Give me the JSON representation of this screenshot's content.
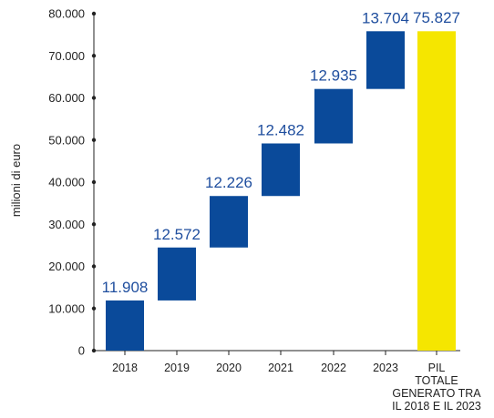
{
  "chart_data": {
    "type": "bar",
    "subtype": "waterfall",
    "ylabel": "milioni di euro",
    "ylim": [
      0,
      80000
    ],
    "yticks": [
      "0",
      "10.000",
      "20.000",
      "30.000",
      "40.000",
      "50.000",
      "60.000",
      "70.000",
      "80.000"
    ],
    "ytick_values": [
      0,
      10000,
      20000,
      30000,
      40000,
      50000,
      60000,
      70000,
      80000
    ],
    "categories": [
      "2018",
      "2019",
      "2020",
      "2021",
      "2022",
      "2023"
    ],
    "total_category_lines": [
      "PIL",
      "TOTALE",
      "GENERATO TRA",
      "IL 2018 E IL 2023"
    ],
    "values": [
      11908,
      12572,
      12226,
      12482,
      12935,
      13704
    ],
    "value_labels": [
      "11.908",
      "12.572",
      "12.226",
      "12.482",
      "12.935",
      "13.704"
    ],
    "total": 75827,
    "total_label": "75.827",
    "grid": false,
    "colors": {
      "increment": "#0a4a9a",
      "total": "#f5e600",
      "label": "#1f4e9e",
      "axis": "#222222"
    }
  }
}
